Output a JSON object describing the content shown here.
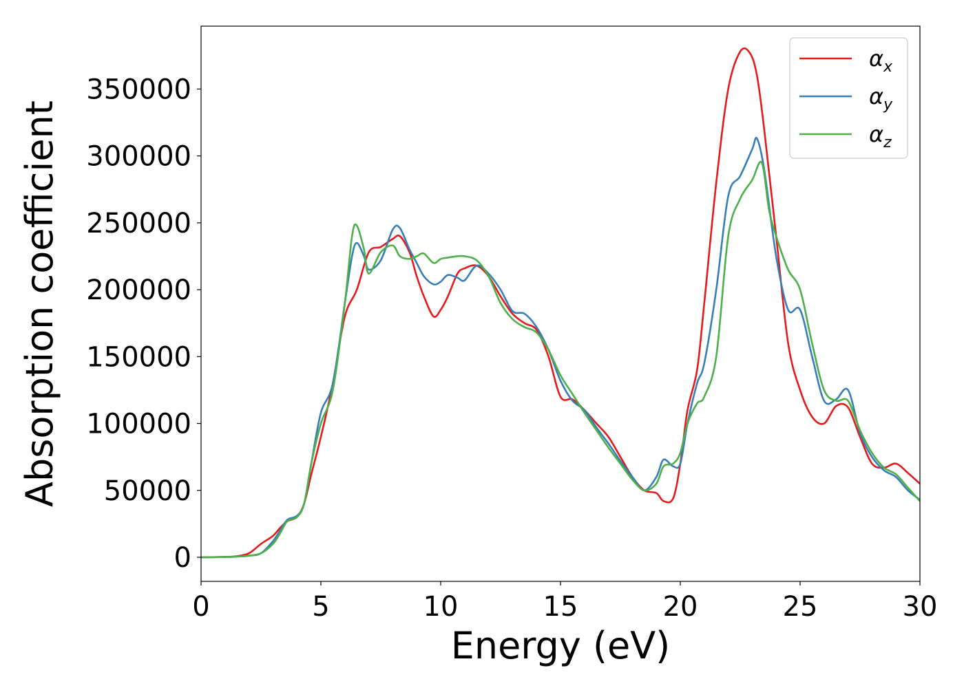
{
  "chart_data": {
    "type": "line",
    "title": "",
    "xlabel": "Energy (eV)",
    "ylabel": "Absorption coefficient",
    "xlim": [
      0,
      30
    ],
    "ylim": [
      -18000,
      397000
    ],
    "xticks": [
      0,
      5,
      10,
      15,
      20,
      25,
      30
    ],
    "yticks": [
      0,
      50000,
      100000,
      150000,
      200000,
      250000,
      300000,
      350000
    ],
    "grid": false,
    "legend_position": "top-right",
    "series": [
      {
        "name": "α",
        "subscript": "x",
        "color": "#e41a1c",
        "x": [
          0,
          1,
          1.5,
          2,
          2.5,
          3,
          3.3,
          3.6,
          4,
          4.3,
          4.6,
          5,
          5.5,
          6,
          6.5,
          7,
          7.5,
          8,
          8.3,
          8.7,
          9,
          9.3,
          9.7,
          10,
          10.3,
          10.7,
          11,
          11.5,
          12,
          12.5,
          13,
          13.5,
          14,
          14.5,
          15,
          15.5,
          16,
          16.5,
          17,
          17.5,
          18,
          18.5,
          19,
          19.3,
          19.7,
          20,
          20.3,
          20.7,
          21,
          21.5,
          22,
          22.5,
          22.9,
          23.2,
          23.5,
          24,
          24.5,
          25,
          25.5,
          26,
          26.5,
          27,
          27.5,
          28,
          28.5,
          29,
          29.5,
          30
        ],
        "y": [
          0,
          300,
          800,
          3000,
          10000,
          16000,
          22000,
          27000,
          30000,
          40000,
          62000,
          90000,
          130000,
          180000,
          200000,
          228000,
          232000,
          238000,
          240000,
          228000,
          210000,
          195000,
          180000,
          185000,
          195000,
          212000,
          216000,
          218000,
          210000,
          195000,
          182000,
          175000,
          170000,
          150000,
          120000,
          118000,
          110000,
          100000,
          90000,
          75000,
          60000,
          50000,
          48000,
          42000,
          44000,
          70000,
          110000,
          140000,
          190000,
          280000,
          350000,
          378000,
          377000,
          360000,
          320000,
          240000,
          160000,
          125000,
          105000,
          100000,
          113000,
          112000,
          90000,
          70000,
          67000,
          70000,
          63000,
          55000
        ]
      },
      {
        "name": "α",
        "subscript": "y",
        "color": "#377eb8",
        "x": [
          0,
          1,
          1.5,
          2,
          2.5,
          3,
          3.3,
          3.6,
          4,
          4.3,
          4.6,
          5,
          5.5,
          6,
          6.3,
          6.5,
          6.8,
          7,
          7.5,
          8,
          8.3,
          8.7,
          9,
          9.3,
          9.7,
          10,
          10.3,
          10.7,
          11,
          11.5,
          12,
          12.5,
          13,
          13.5,
          14,
          14.5,
          15,
          15.5,
          16,
          16.5,
          17,
          17.5,
          18,
          18.5,
          19,
          19.3,
          19.7,
          20,
          20.3,
          20.7,
          21,
          21.5,
          22,
          22.5,
          23,
          23.2,
          23.5,
          24,
          24.5,
          25,
          25.5,
          26,
          26.5,
          27,
          27.5,
          28,
          28.5,
          29,
          29.5,
          30
        ],
        "y": [
          0,
          200,
          500,
          1200,
          3000,
          12000,
          20000,
          28000,
          31000,
          40000,
          70000,
          108000,
          130000,
          190000,
          225000,
          235000,
          225000,
          215000,
          222000,
          245000,
          246000,
          230000,
          220000,
          210000,
          204000,
          206000,
          211000,
          209000,
          207000,
          218000,
          212000,
          200000,
          184000,
          182000,
          172000,
          155000,
          132000,
          117000,
          110000,
          97000,
          85000,
          72000,
          60000,
          50000,
          60000,
          73000,
          68000,
          70000,
          100000,
          130000,
          145000,
          200000,
          270000,
          285000,
          305000,
          313000,
          290000,
          225000,
          185000,
          185000,
          150000,
          117000,
          118000,
          125000,
          93000,
          75000,
          65000,
          60000,
          50000,
          43000
        ]
      },
      {
        "name": "α",
        "subscript": "z",
        "color": "#4daf4a",
        "x": [
          0,
          1,
          1.5,
          2,
          2.5,
          3,
          3.3,
          3.6,
          4,
          4.3,
          4.6,
          5,
          5.5,
          6,
          6.3,
          6.5,
          6.8,
          7,
          7.5,
          8,
          8.3,
          8.7,
          9,
          9.3,
          9.7,
          10,
          10.3,
          10.7,
          11,
          11.5,
          12,
          12.5,
          13,
          13.5,
          14,
          14.5,
          15,
          15.5,
          16,
          16.5,
          17,
          17.5,
          18,
          18.5,
          19,
          19.3,
          19.7,
          20,
          20.3,
          20.7,
          21,
          21.5,
          22,
          22.5,
          23,
          23.4,
          23.7,
          24,
          24.5,
          25,
          25.5,
          26,
          26.5,
          27,
          27.5,
          28,
          28.5,
          29,
          29.5,
          30
        ],
        "y": [
          0,
          200,
          500,
          1200,
          3000,
          10000,
          18000,
          27000,
          30000,
          40000,
          70000,
          100000,
          125000,
          190000,
          240000,
          248000,
          230000,
          212000,
          228000,
          233000,
          225000,
          223000,
          225000,
          227000,
          220000,
          223000,
          224000,
          225000,
          225000,
          222000,
          210000,
          190000,
          178000,
          172000,
          168000,
          155000,
          136000,
          122000,
          108000,
          95000,
          82000,
          70000,
          58000,
          50000,
          55000,
          68000,
          70000,
          78000,
          100000,
          115000,
          120000,
          150000,
          240000,
          268000,
          282000,
          295000,
          260000,
          240000,
          215000,
          200000,
          160000,
          125000,
          117000,
          117000,
          95000,
          78000,
          67000,
          62000,
          52000,
          42000
        ]
      }
    ]
  }
}
